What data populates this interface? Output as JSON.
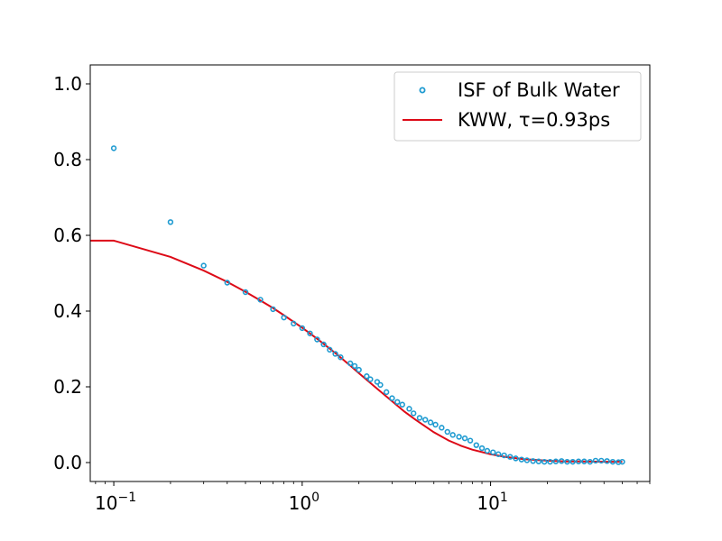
{
  "chart_data": {
    "type": "scatter",
    "x_scale": "log",
    "xlim": [
      0.075,
      70
    ],
    "ylim": [
      -0.05,
      1.05
    ],
    "grid": false,
    "legend_position": "top-right",
    "colors": {
      "data_marker": "#1f9bd1",
      "fit_line": "#dd0a17",
      "axes": "#000000"
    },
    "y_ticks": [
      {
        "value": 0.0,
        "label": "0.0"
      },
      {
        "value": 0.2,
        "label": "0.2"
      },
      {
        "value": 0.4,
        "label": "0.4"
      },
      {
        "value": 0.6,
        "label": "0.6"
      },
      {
        "value": 0.8,
        "label": "0.8"
      },
      {
        "value": 1.0,
        "label": "1.0"
      }
    ],
    "x_ticks": [
      {
        "value": 0.1,
        "base": "10",
        "exp": "−1"
      },
      {
        "value": 1,
        "base": "10",
        "exp": "0"
      },
      {
        "value": 10,
        "base": "10",
        "exp": "1"
      }
    ],
    "series": [
      {
        "name": "ISF of Bulk Water",
        "kind": "scatter",
        "x": [
          0.1,
          0.2,
          0.3,
          0.4,
          0.5,
          0.6,
          0.7,
          0.8,
          0.9,
          1.0,
          1.1,
          1.2,
          1.3,
          1.4,
          1.5,
          1.6,
          1.8,
          1.9,
          2.0,
          2.2,
          2.3,
          2.5,
          2.6,
          2.8,
          3.0,
          3.2,
          3.4,
          3.7,
          3.9,
          4.2,
          4.5,
          4.8,
          5.1,
          5.5,
          5.9,
          6.3,
          6.8,
          7.3,
          7.8,
          8.4,
          9.0,
          9.6,
          10.3,
          11.0,
          11.8,
          12.7,
          13.6,
          14.6,
          15.6,
          16.8,
          18.0,
          19.3,
          20.7,
          22.2,
          23.8,
          25.5,
          27.3,
          29.3,
          31.4,
          33.7,
          36.1,
          38.7,
          41.5,
          44.5,
          47.7,
          50.0
        ],
        "y": [
          0.83,
          0.635,
          0.52,
          0.475,
          0.45,
          0.43,
          0.405,
          0.383,
          0.367,
          0.355,
          0.341,
          0.325,
          0.312,
          0.298,
          0.287,
          0.278,
          0.262,
          0.255,
          0.245,
          0.228,
          0.22,
          0.213,
          0.205,
          0.186,
          0.17,
          0.16,
          0.153,
          0.142,
          0.13,
          0.118,
          0.113,
          0.106,
          0.1,
          0.092,
          0.081,
          0.073,
          0.068,
          0.064,
          0.058,
          0.046,
          0.038,
          0.031,
          0.027,
          0.022,
          0.019,
          0.015,
          0.011,
          0.008,
          0.006,
          0.004,
          0.003,
          0.002,
          0.002,
          0.003,
          0.004,
          0.002,
          0.002,
          0.003,
          0.003,
          0.002,
          0.005,
          0.005,
          0.004,
          0.002,
          0.001,
          0.002
        ]
      },
      {
        "name": "KWW, τ=0.93ps",
        "kind": "line",
        "x": [
          0.075,
          0.1,
          0.2,
          0.3,
          0.4,
          0.5,
          0.6,
          0.7,
          0.8,
          1.0,
          1.2,
          1.5,
          1.8,
          2.0,
          2.5,
          3.0,
          3.5,
          4.0,
          5.0,
          6.0,
          7.0,
          8.0,
          10.0,
          12.0,
          15.0,
          20.0,
          25.0,
          30.0,
          40.0,
          50.0
        ],
        "y": [
          0.586,
          0.586,
          0.543,
          0.507,
          0.477,
          0.451,
          0.428,
          0.408,
          0.389,
          0.356,
          0.327,
          0.289,
          0.256,
          0.236,
          0.195,
          0.162,
          0.134,
          0.113,
          0.08,
          0.058,
          0.044,
          0.034,
          0.022,
          0.015,
          0.009,
          0.005,
          0.003,
          0.003,
          0.002,
          0.002
        ]
      }
    ]
  }
}
